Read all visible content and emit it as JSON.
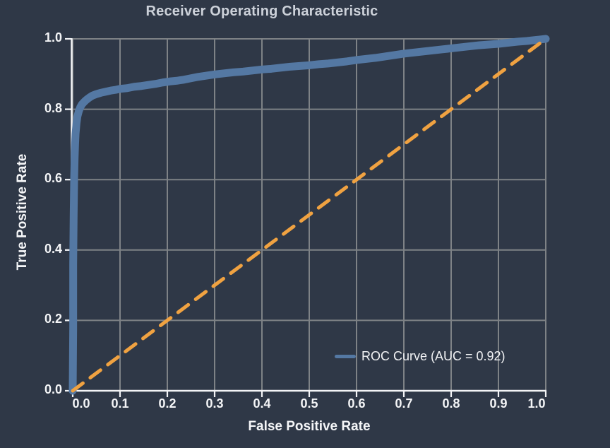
{
  "figure": {
    "background_color": "#2f3847"
  },
  "chart_data": {
    "type": "line",
    "title": "Receiver Operating Characteristic",
    "xlabel": "False Positive Rate",
    "ylabel": "True Positive Rate",
    "xlim": [
      0.0,
      1.0
    ],
    "ylim": [
      0.0,
      1.0
    ],
    "x_tick_labels": [
      "0.0",
      "0.1",
      "0.2",
      "0.3",
      "0.4",
      "0.5",
      "0.6",
      "0.7",
      "0.8",
      "0.9",
      "1.0"
    ],
    "y_tick_labels": [
      "0.0",
      "0.2",
      "0.4",
      "0.6",
      "0.8",
      "1.0"
    ],
    "grid": true,
    "grid_color": "#7e8286",
    "axis_color": "#f3f4f6",
    "legend": {
      "position": "lower right",
      "entries": [
        {
          "label": "ROC Curve (AUC = 0.92)",
          "color": "#5478a3"
        }
      ]
    },
    "series": [
      {
        "name": "ROC Curve",
        "auc": 0.92,
        "color": "#5478a3",
        "style": "solid",
        "line_width": 11,
        "points": [
          [
            0.0,
            0.0
          ],
          [
            0.001,
            0.18
          ],
          [
            0.001,
            0.36
          ],
          [
            0.002,
            0.5
          ],
          [
            0.003,
            0.6
          ],
          [
            0.004,
            0.66
          ],
          [
            0.005,
            0.7
          ],
          [
            0.006,
            0.73
          ],
          [
            0.008,
            0.76
          ],
          [
            0.01,
            0.78
          ],
          [
            0.013,
            0.795
          ],
          [
            0.016,
            0.806
          ],
          [
            0.02,
            0.815
          ],
          [
            0.025,
            0.822
          ],
          [
            0.03,
            0.828
          ],
          [
            0.036,
            0.834
          ],
          [
            0.042,
            0.839
          ],
          [
            0.05,
            0.843
          ],
          [
            0.06,
            0.847
          ],
          [
            0.07,
            0.85
          ],
          [
            0.08,
            0.853
          ],
          [
            0.09,
            0.855
          ],
          [
            0.1,
            0.858
          ],
          [
            0.115,
            0.86
          ],
          [
            0.13,
            0.864
          ],
          [
            0.145,
            0.866
          ],
          [
            0.16,
            0.869
          ],
          [
            0.175,
            0.872
          ],
          [
            0.19,
            0.876
          ],
          [
            0.205,
            0.879
          ],
          [
            0.22,
            0.881
          ],
          [
            0.235,
            0.884
          ],
          [
            0.25,
            0.888
          ],
          [
            0.265,
            0.892
          ],
          [
            0.28,
            0.895
          ],
          [
            0.3,
            0.899
          ],
          [
            0.32,
            0.902
          ],
          [
            0.34,
            0.905
          ],
          [
            0.36,
            0.907
          ],
          [
            0.38,
            0.91
          ],
          [
            0.4,
            0.913
          ],
          [
            0.42,
            0.915
          ],
          [
            0.44,
            0.918
          ],
          [
            0.46,
            0.921
          ],
          [
            0.48,
            0.923
          ],
          [
            0.5,
            0.925
          ],
          [
            0.52,
            0.928
          ],
          [
            0.54,
            0.93
          ],
          [
            0.56,
            0.933
          ],
          [
            0.58,
            0.936
          ],
          [
            0.6,
            0.94
          ],
          [
            0.62,
            0.943
          ],
          [
            0.64,
            0.946
          ],
          [
            0.66,
            0.95
          ],
          [
            0.68,
            0.954
          ],
          [
            0.7,
            0.958
          ],
          [
            0.72,
            0.961
          ],
          [
            0.74,
            0.964
          ],
          [
            0.76,
            0.967
          ],
          [
            0.78,
            0.97
          ],
          [
            0.8,
            0.973
          ],
          [
            0.82,
            0.976
          ],
          [
            0.84,
            0.979
          ],
          [
            0.86,
            0.982
          ],
          [
            0.88,
            0.984
          ],
          [
            0.9,
            0.986
          ],
          [
            0.92,
            0.989
          ],
          [
            0.94,
            0.992
          ],
          [
            0.96,
            0.994
          ],
          [
            0.98,
            0.997
          ],
          [
            1.0,
            1.0
          ]
        ]
      },
      {
        "name": "Chance diagonal",
        "color": "#f0a241",
        "style": "dashed",
        "line_width": 5,
        "points": [
          [
            0.0,
            0.0
          ],
          [
            1.0,
            1.0
          ]
        ]
      }
    ]
  }
}
